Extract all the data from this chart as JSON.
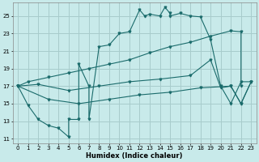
{
  "xlabel": "Humidex (Indice chaleur)",
  "bg_color": "#c8eaea",
  "grid_color": "#a8cccc",
  "line_color": "#1a6b6b",
  "xlim": [
    -0.5,
    23.5
  ],
  "ylim": [
    10.5,
    26.5
  ],
  "xticks": [
    0,
    1,
    2,
    3,
    4,
    5,
    6,
    7,
    8,
    9,
    10,
    11,
    12,
    13,
    14,
    15,
    16,
    17,
    18,
    19,
    20,
    21,
    22,
    23
  ],
  "yticks": [
    11,
    13,
    15,
    17,
    19,
    21,
    23,
    25
  ],
  "series_zigzag": [
    [
      0,
      17
    ],
    [
      1,
      14.8
    ],
    [
      2,
      13.2
    ],
    [
      3,
      12.5
    ],
    [
      4,
      12.2
    ],
    [
      5,
      11.2
    ],
    [
      5,
      13.2
    ],
    [
      6,
      13.2
    ],
    [
      6,
      19.5
    ],
    [
      7,
      17.0
    ],
    [
      7,
      13.2
    ],
    [
      8,
      21.5
    ],
    [
      9,
      21.7
    ],
    [
      10,
      23.0
    ],
    [
      11,
      23.2
    ],
    [
      12,
      25.7
    ],
    [
      12.5,
      25.0
    ],
    [
      13,
      25.2
    ],
    [
      14,
      25.0
    ],
    [
      14.5,
      26.0
    ],
    [
      15,
      25.3
    ],
    [
      15,
      25.0
    ],
    [
      16,
      25.3
    ],
    [
      17,
      25.0
    ],
    [
      18,
      24.9
    ],
    [
      19,
      22.3
    ],
    [
      20,
      17.0
    ],
    [
      21,
      15.0
    ],
    [
      22,
      17.5
    ],
    [
      23,
      17.5
    ]
  ],
  "series_upper": [
    [
      0,
      17
    ],
    [
      1,
      17.5
    ],
    [
      3,
      18.0
    ],
    [
      5,
      18.5
    ],
    [
      7,
      19.0
    ],
    [
      9,
      19.5
    ],
    [
      11,
      20.0
    ],
    [
      13,
      20.8
    ],
    [
      15,
      21.5
    ],
    [
      17,
      22.0
    ],
    [
      19,
      22.7
    ],
    [
      21,
      23.3
    ],
    [
      22,
      23.2
    ],
    [
      22,
      17.0
    ]
  ],
  "series_mid": [
    [
      0,
      17
    ],
    [
      2,
      17.2
    ],
    [
      5,
      16.5
    ],
    [
      8,
      17.0
    ],
    [
      11,
      17.5
    ],
    [
      14,
      17.8
    ],
    [
      17,
      18.2
    ],
    [
      19,
      20.0
    ],
    [
      20,
      16.8
    ],
    [
      21,
      17.0
    ],
    [
      22,
      15.0
    ],
    [
      23,
      17.5
    ]
  ],
  "series_lower": [
    [
      0,
      17
    ],
    [
      3,
      15.5
    ],
    [
      6,
      15.0
    ],
    [
      9,
      15.5
    ],
    [
      12,
      16.0
    ],
    [
      15,
      16.3
    ],
    [
      18,
      16.8
    ],
    [
      21,
      17.0
    ],
    [
      22,
      15.0
    ],
    [
      23,
      17.5
    ]
  ]
}
